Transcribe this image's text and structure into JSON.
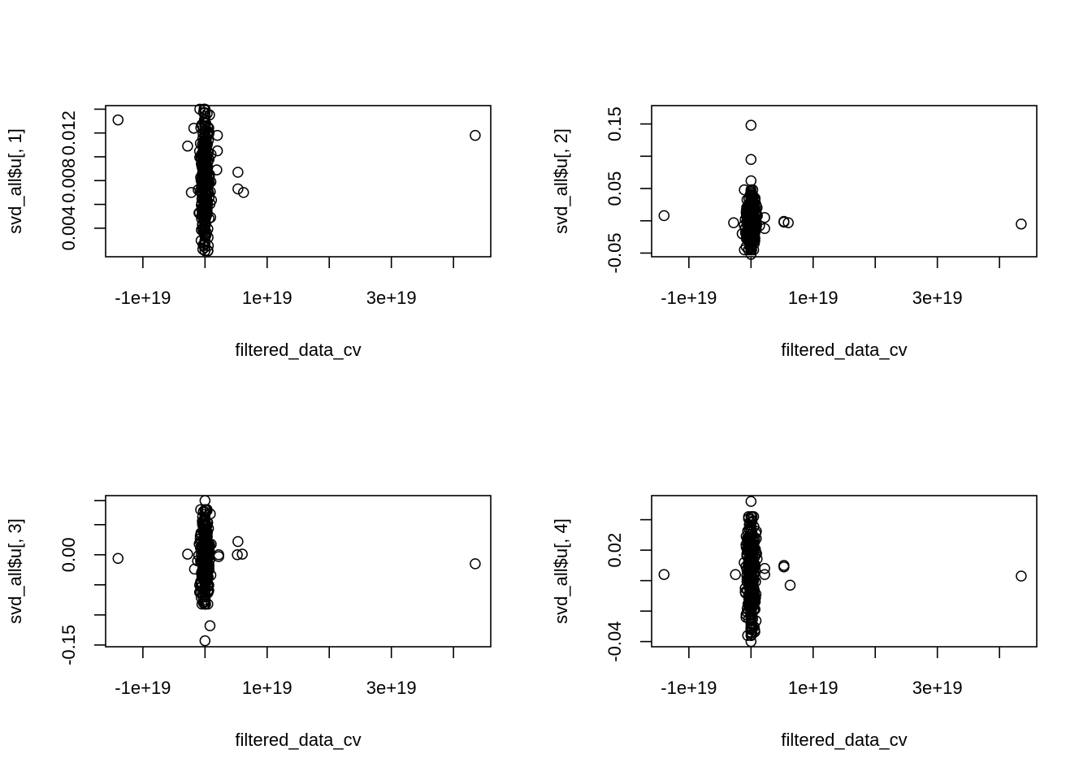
{
  "chart_data": [
    {
      "type": "scatter",
      "xlabel": "filtered_data_cv",
      "ylabel": "svd_all$u[, 1]",
      "xlim": [
        -1.6e+19,
        4.6e+19
      ],
      "ylim": [
        0.0016,
        0.0143
      ],
      "x_ticks": [
        -1e+19,
        0,
        1e+19,
        2e+19,
        3e+19,
        4e+19
      ],
      "x_tick_labels": [
        "-1e+19",
        "",
        "1e+19",
        "",
        "3e+19",
        ""
      ],
      "y_ticks": [
        0.004,
        0.008,
        0.012
      ],
      "y_minor_ticks": [
        0.006,
        0.01,
        0.014
      ],
      "y_tick_labels": [
        "0.004",
        "0.008",
        "0.012"
      ],
      "grid": false,
      "outliers": [
        [
          -1.4e+19,
          0.0131
        ],
        [
          4.35e+19,
          0.0118
        ],
        [
          5.3e+18,
          0.0087
        ],
        [
          5.3e+18,
          0.0073
        ],
        [
          6.2e+18,
          0.007
        ],
        [
          2e+18,
          0.0118
        ],
        [
          2e+18,
          0.0105
        ],
        [
          1.9e+18,
          0.0089
        ],
        [
          -2.8e+18,
          0.0109
        ],
        [
          -2.2e+18,
          0.007
        ],
        [
          -1.8e+18,
          0.0124
        ]
      ],
      "cluster": {
        "x_center": 0.0,
        "x_spread": 1.2e+18,
        "y_min": 0.0021,
        "y_max": 0.014
      }
    },
    {
      "type": "scatter",
      "xlabel": "filtered_data_cv",
      "ylabel": "svd_all$u[, 2]",
      "xlim": [
        -1.6e+19,
        4.6e+19
      ],
      "ylim": [
        -0.0557,
        0.1784
      ],
      "x_ticks": [
        -1e+19,
        0,
        1e+19,
        2e+19,
        3e+19,
        4e+19
      ],
      "x_tick_labels": [
        "-1e+19",
        "",
        "1e+19",
        "",
        "3e+19",
        ""
      ],
      "y_ticks": [
        -0.05,
        0.05,
        0.15
      ],
      "y_minor_ticks": [
        0.0,
        0.1
      ],
      "y_tick_labels": [
        "-0.05",
        "0.05",
        "0.15"
      ],
      "grid": false,
      "outliers": [
        [
          -1.4e+19,
          0.008
        ],
        [
          4.35e+19,
          -0.005
        ],
        [
          5.3e+18,
          -0.002
        ],
        [
          5.3e+18,
          -0.001
        ],
        [
          6e+18,
          -0.003
        ],
        [
          0,
          0.148
        ],
        [
          0,
          0.095
        ],
        [
          0,
          0.062
        ],
        [
          0,
          -0.052
        ],
        [
          -2.8e+18,
          -0.003
        ],
        [
          2.2e+18,
          0.005
        ],
        [
          2.2e+18,
          -0.012
        ]
      ],
      "cluster": {
        "x_center": 0.0,
        "x_spread": 1.2e+18,
        "y_min": -0.045,
        "y_max": 0.048
      }
    },
    {
      "type": "scatter",
      "xlabel": "filtered_data_cv",
      "ylabel": "svd_all$u[, 3]",
      "xlim": [
        -1.6e+19,
        4.6e+19
      ],
      "ylim": [
        -0.1529,
        0.0983
      ],
      "x_ticks": [
        -1e+19,
        0,
        1e+19,
        2e+19,
        3e+19,
        4e+19
      ],
      "x_tick_labels": [
        "-1e+19",
        "",
        "1e+19",
        "",
        "3e+19",
        ""
      ],
      "y_ticks": [
        -0.15,
        0.0
      ],
      "y_minor_ticks": [
        -0.1,
        -0.05,
        0.05,
        0.09
      ],
      "y_tick_labels": [
        "-0.15",
        "0.00"
      ],
      "grid": false,
      "outliers": [
        [
          -1.4e+19,
          -0.006
        ],
        [
          4.35e+19,
          -0.015
        ],
        [
          5.3e+18,
          0.022
        ],
        [
          5.2e+18,
          0.0
        ],
        [
          6e+18,
          0.001
        ],
        [
          0,
          0.09
        ],
        [
          0,
          -0.143
        ],
        [
          8e+17,
          -0.118
        ],
        [
          -2.8e+18,
          0.001
        ],
        [
          2.2e+18,
          0.0
        ],
        [
          2.2e+18,
          -0.003
        ]
      ],
      "cluster": {
        "x_center": 0.0,
        "x_spread": 1.2e+18,
        "y_min": -0.082,
        "y_max": 0.075
      }
    },
    {
      "type": "scatter",
      "xlabel": "filtered_data_cv",
      "ylabel": "svd_all$u[, 4]",
      "xlim": [
        -1.6e+19,
        4.6e+19
      ],
      "ylim": [
        -0.0434,
        0.0558
      ],
      "x_ticks": [
        -1e+19,
        0,
        1e+19,
        2e+19,
        3e+19,
        4e+19
      ],
      "x_tick_labels": [
        "-1e+19",
        "",
        "1e+19",
        "",
        "3e+19",
        ""
      ],
      "y_ticks": [
        -0.04,
        0.02
      ],
      "y_minor_ticks": [
        -0.02,
        0.0,
        0.04
      ],
      "y_tick_labels": [
        "-0.04",
        "0.02"
      ],
      "grid": false,
      "outliers": [
        [
          -1.4e+19,
          0.004
        ],
        [
          4.35e+19,
          0.003
        ],
        [
          5.3e+18,
          0.01
        ],
        [
          5.3e+18,
          0.009
        ],
        [
          6.3e+18,
          -0.003
        ],
        [
          0,
          0.052
        ],
        [
          0,
          -0.04
        ],
        [
          -2.5e+18,
          0.004
        ],
        [
          2.2e+18,
          0.008
        ],
        [
          2.2e+18,
          0.004
        ]
      ],
      "cluster": {
        "x_center": 0.0,
        "x_spread": 1.2e+18,
        "y_min": -0.036,
        "y_max": 0.042
      }
    }
  ]
}
